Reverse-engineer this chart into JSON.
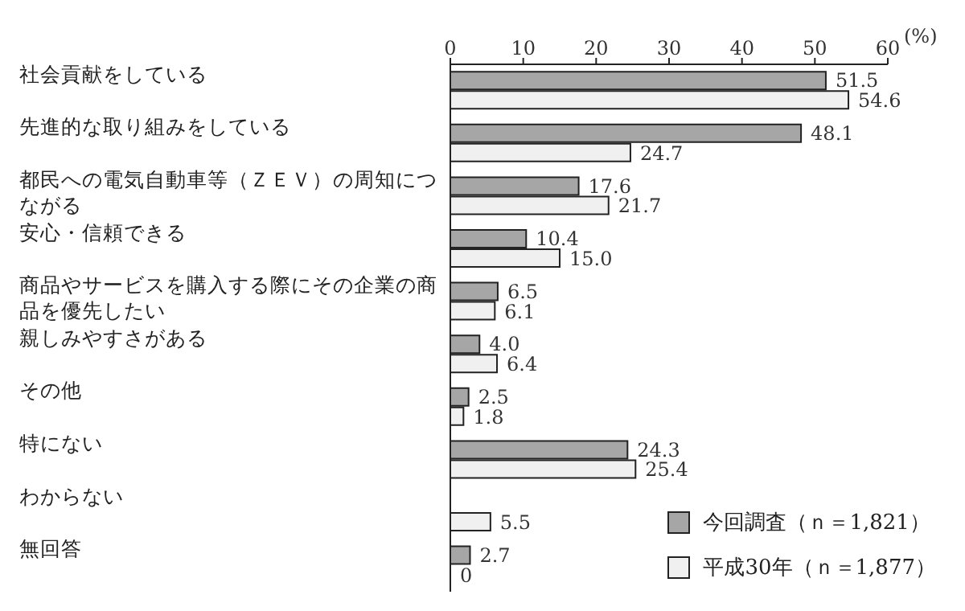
{
  "chart_data": {
    "type": "bar",
    "orientation": "horizontal",
    "xlabel": "(%)",
    "categories": [
      "社会貢献をしている",
      "先進的な取り組みをしている",
      "都民への電気自動車等（ＺＥＶ）の周知につながる",
      "安心・信頼できる",
      "商品やサービスを購入する際にその企業の商品を優先したい",
      "親しみやすさがある",
      "その他",
      "特にない",
      "わからない",
      "無回答"
    ],
    "series": [
      {
        "name": "今回調査（ｎ＝1,821）",
        "color": "#a6a6a6",
        "values": [
          51.5,
          48.1,
          17.6,
          10.4,
          6.5,
          4.0,
          2.5,
          24.3,
          null,
          2.7
        ],
        "value_labels": [
          "51.5",
          "48.1",
          "17.6",
          "10.4",
          "6.5",
          "4.0",
          "2.5",
          "24.3",
          null,
          "2.7"
        ]
      },
      {
        "name": "平成30年（ｎ＝1,877）",
        "color": "#f0f0f0",
        "values": [
          54.6,
          24.7,
          21.7,
          15.0,
          6.1,
          6.4,
          1.8,
          25.4,
          5.5,
          0
        ],
        "value_labels": [
          "54.6",
          "24.7",
          "21.7",
          "15.0",
          "6.1",
          "6.4",
          "1.8",
          "25.4",
          "5.5",
          "0"
        ]
      }
    ],
    "xlim": [
      0,
      60
    ],
    "xticks": [
      0,
      10,
      20,
      30,
      40,
      50,
      60
    ],
    "grid": false,
    "legend": "bottom right"
  }
}
